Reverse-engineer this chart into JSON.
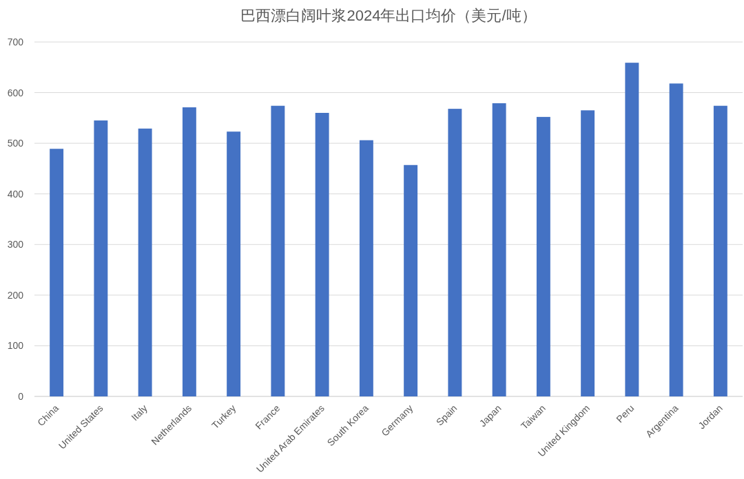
{
  "chart_data": {
    "type": "bar",
    "title": "巴西漂白阔叶浆2024年出口均价（美元/吨）",
    "categories": [
      "China",
      "United States",
      "Italy",
      "Netherlands",
      "Turkey",
      "France",
      "United Arab Emirates",
      "South Korea",
      "Germany",
      "Spain",
      "Japan",
      "Taiwan",
      "United Kingdom",
      "Peru",
      "Argentina",
      "Jordan"
    ],
    "values": [
      489,
      545,
      529,
      571,
      523,
      574,
      560,
      506,
      457,
      568,
      579,
      552,
      565,
      659,
      618,
      574
    ],
    "color": "#4472c4",
    "ylim": [
      0,
      700
    ],
    "yticks": [
      0,
      100,
      200,
      300,
      400,
      500,
      600,
      700
    ],
    "grid": "y"
  }
}
